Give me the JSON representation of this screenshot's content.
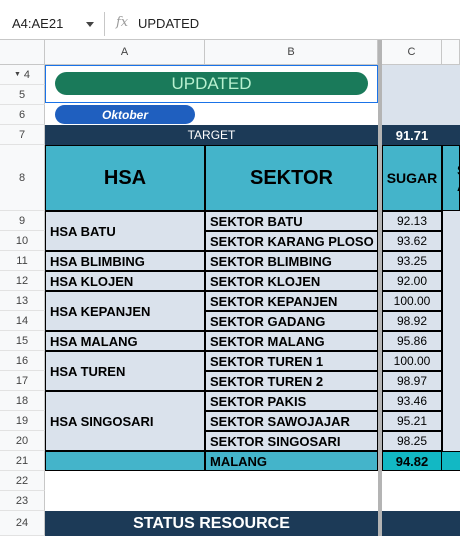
{
  "formula_bar": {
    "cell_ref": "A4:AE21",
    "fx": "fx",
    "value": "UPDATED"
  },
  "columns": [
    "A",
    "B",
    "C"
  ],
  "rows": [
    "4",
    "5",
    "6",
    "7",
    "8",
    "9",
    "10",
    "11",
    "12",
    "13",
    "14",
    "15",
    "16",
    "17",
    "18",
    "19",
    "20",
    "21",
    "22",
    "23",
    "24"
  ],
  "banner": {
    "updated": "UPDATED",
    "month": "Oktober"
  },
  "target": {
    "label": "TARGET",
    "value": "91.71"
  },
  "headers": {
    "hsa": "HSA",
    "sektor": "SEKTOR",
    "sugar": "SUGAR",
    "next_partial": "S\nAV"
  },
  "hsa_groups": [
    "HSA BATU",
    "HSA BLIMBING",
    "HSA KLOJEN",
    "HSA KEPANJEN",
    "HSA MALANG",
    "HSA TUREN",
    "HSA SINGOSARI"
  ],
  "sektor_rows": [
    {
      "sektor": "SEKTOR BATU",
      "sugar": "92.13"
    },
    {
      "sektor": "SEKTOR KARANG PLOSO",
      "sugar": "93.62"
    },
    {
      "sektor": "SEKTOR BLIMBING",
      "sugar": "93.25"
    },
    {
      "sektor": "SEKTOR KLOJEN",
      "sugar": "92.00"
    },
    {
      "sektor": "SEKTOR KEPANJEN",
      "sugar": "100.00"
    },
    {
      "sektor": "SEKTOR GADANG",
      "sugar": "98.92"
    },
    {
      "sektor": "SEKTOR MALANG",
      "sugar": "95.86"
    },
    {
      "sektor": "SEKTOR TUREN 1",
      "sugar": "100.00"
    },
    {
      "sektor": "SEKTOR TUREN 2",
      "sugar": "98.97"
    },
    {
      "sektor": "SEKTOR PAKIS",
      "sugar": "93.46"
    },
    {
      "sektor": "SEKTOR SAWOJAJAR",
      "sugar": "95.21"
    },
    {
      "sektor": "SEKTOR SINGOSARI",
      "sugar": "98.25"
    }
  ],
  "total": {
    "label": "MALANG",
    "sugar": "94.82"
  },
  "status": "STATUS RESOURCE"
}
